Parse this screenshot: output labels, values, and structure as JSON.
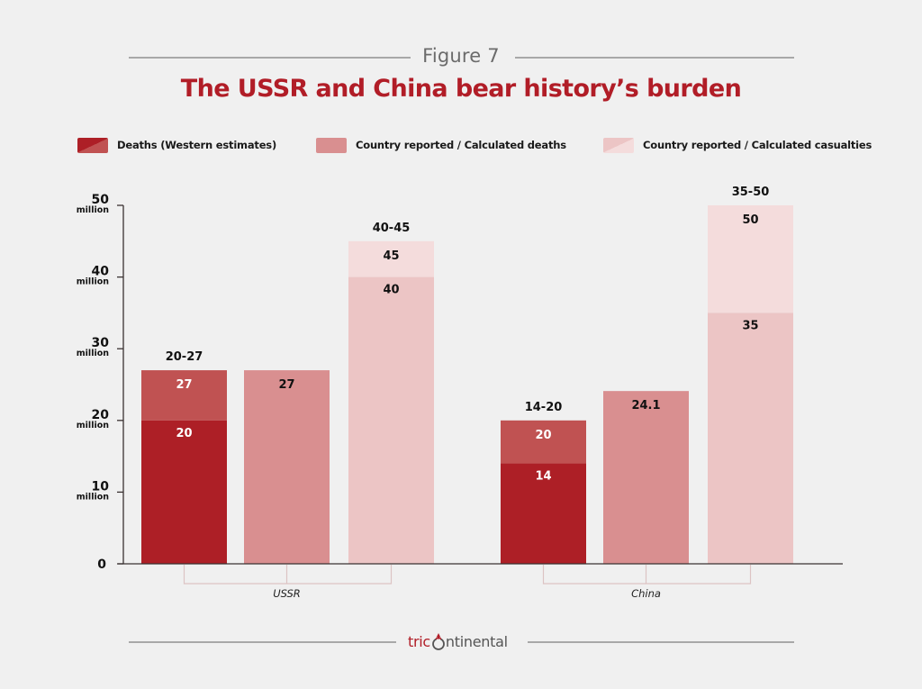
{
  "header": {
    "figure_label": "Figure 7",
    "title": "The USSR and China bear history’s burden"
  },
  "legend": [
    {
      "label": "Deaths (Western estimates)",
      "color": "#ad1f26",
      "color2": "#c05252"
    },
    {
      "label": "Country reported / Calculated deaths",
      "color": "#d98f90"
    },
    {
      "label": "Country reported / Calculated casualties",
      "color": "#ecc5c5",
      "color2": "#f4dcdc"
    }
  ],
  "colors": {
    "background": "#f0f0f0",
    "title": "#b11d27",
    "western_low": "#ad1f26",
    "western_high": "#c05252",
    "country_deaths": "#d98f90",
    "casualties_low": "#ecc5c5",
    "casualties_high": "#f4dcdc",
    "axis": "#3a3232",
    "bracket": "#dcc3c3"
  },
  "footer": {
    "logo_part1": "tric",
    "logo_part2": "ntinental"
  },
  "chart_data": {
    "type": "bar",
    "title": "The USSR and China bear history’s burden",
    "subtitle": "Figure 7",
    "xlabel": "",
    "ylabel": "",
    "ylim": [
      0,
      50
    ],
    "unit": "million",
    "y_ticks": [
      {
        "value": 0,
        "label": "0",
        "sublabel": ""
      },
      {
        "value": 10,
        "label": "10",
        "sublabel": "million"
      },
      {
        "value": 20,
        "label": "20",
        "sublabel": "million"
      },
      {
        "value": 30,
        "label": "30",
        "sublabel": "million"
      },
      {
        "value": 40,
        "label": "40",
        "sublabel": "million"
      },
      {
        "value": 50,
        "label": "50",
        "sublabel": "million"
      }
    ],
    "grid": false,
    "legend_position": "top",
    "categories": [
      "USSR",
      "China"
    ],
    "series": [
      {
        "name": "Deaths (Western estimates)",
        "type": "range",
        "values": [
          {
            "low": 20,
            "high": 27,
            "range_label": "20-27"
          },
          {
            "low": 14,
            "high": 20,
            "range_label": "14-20"
          }
        ]
      },
      {
        "name": "Country reported / Calculated deaths",
        "type": "single",
        "values": [
          {
            "value": 27,
            "label": "27"
          },
          {
            "value": 24.1,
            "label": "24.1"
          }
        ]
      },
      {
        "name": "Country reported / Calculated casualties",
        "type": "range",
        "values": [
          {
            "low": 40,
            "high": 45,
            "range_label": "40-45"
          },
          {
            "low": 35,
            "high": 50,
            "range_label": "35-50"
          }
        ]
      }
    ]
  }
}
